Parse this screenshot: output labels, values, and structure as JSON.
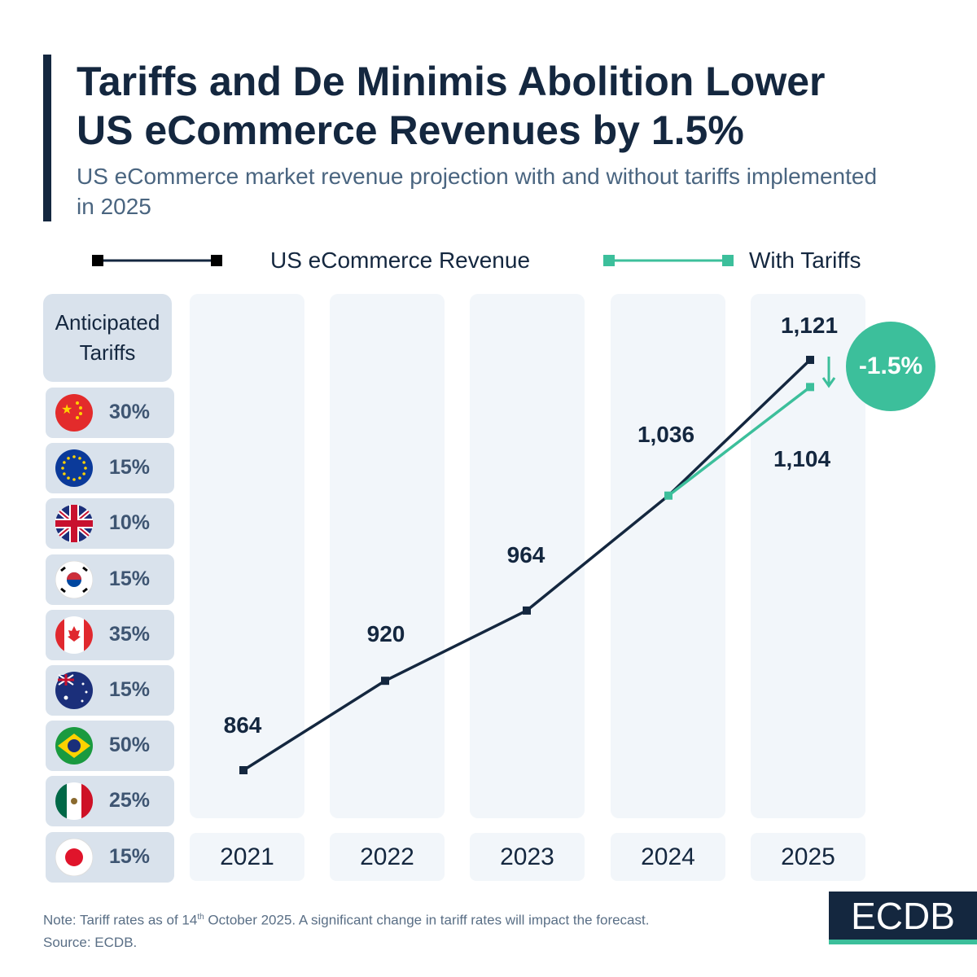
{
  "header": {
    "title_line1": "Tariffs and De Minimis Abolition Lower",
    "title_line2": "US eCommerce Revenues by 1.5%",
    "subtitle": "US eCommerce market revenue projection with and without tariffs implemented in 2025"
  },
  "tariffs": {
    "header": "Anticipated Tariffs",
    "rows": [
      {
        "country": "China",
        "flag": "china-flag",
        "rate": "30%"
      },
      {
        "country": "EU",
        "flag": "eu-flag",
        "rate": "15%"
      },
      {
        "country": "UK",
        "flag": "uk-flag",
        "rate": "10%"
      },
      {
        "country": "South Korea",
        "flag": "south-korea-flag",
        "rate": "15%"
      },
      {
        "country": "Canada",
        "flag": "canada-flag",
        "rate": "35%"
      },
      {
        "country": "Australia",
        "flag": "australia-flag",
        "rate": "15%"
      },
      {
        "country": "Brazil",
        "flag": "brazil-flag",
        "rate": "50%"
      },
      {
        "country": "Mexico",
        "flag": "mexico-flag",
        "rate": "25%"
      },
      {
        "country": "Japan",
        "flag": "japan-flag",
        "rate": "15%"
      }
    ]
  },
  "chart_data": {
    "type": "line",
    "categories": [
      "2021",
      "2022",
      "2023",
      "2024",
      "2025"
    ],
    "series": [
      {
        "name": "US eCommerce Revenue",
        "color": "#14273f",
        "values": [
          864,
          920,
          964,
          1036,
          1121
        ],
        "labels": [
          "864",
          "920",
          "964",
          "1,036",
          "1,121"
        ]
      },
      {
        "name": "With Tariffs",
        "color": "#3cbf9b",
        "x": [
          "2024",
          "2025"
        ],
        "values": [
          1036,
          1104
        ],
        "labels": [
          "1,104"
        ]
      }
    ],
    "annotation": "-1.5%"
  },
  "footer": {
    "note_pre": "Note: Tariff rates as of 14",
    "note_sup": "th",
    "note_post": " October 2025. A significant change in tariff rates will impact the forecast.",
    "source": "Source: ECDB.",
    "logo": "ECDB"
  }
}
